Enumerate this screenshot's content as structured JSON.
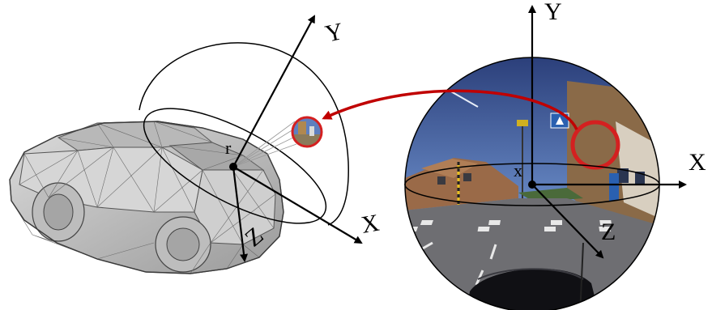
{
  "left_frame": {
    "axis_x": "X",
    "axis_y": "Y",
    "axis_z": "Z",
    "origin": "r"
  },
  "right_frame": {
    "axis_x": "X",
    "axis_y": "Y",
    "axis_z": "Z",
    "origin": "x"
  },
  "colors": {
    "projection_arrow": "#c00000",
    "highlight_circle": "#d42020",
    "car_body": "#c8c8c8",
    "car_wire": "#5a5a5a",
    "sky": "#3a5a9c",
    "road": "#6e6e72"
  },
  "icons": [
    "car-wireframe",
    "fisheye-image",
    "hemisphere",
    "projection-arrow"
  ]
}
